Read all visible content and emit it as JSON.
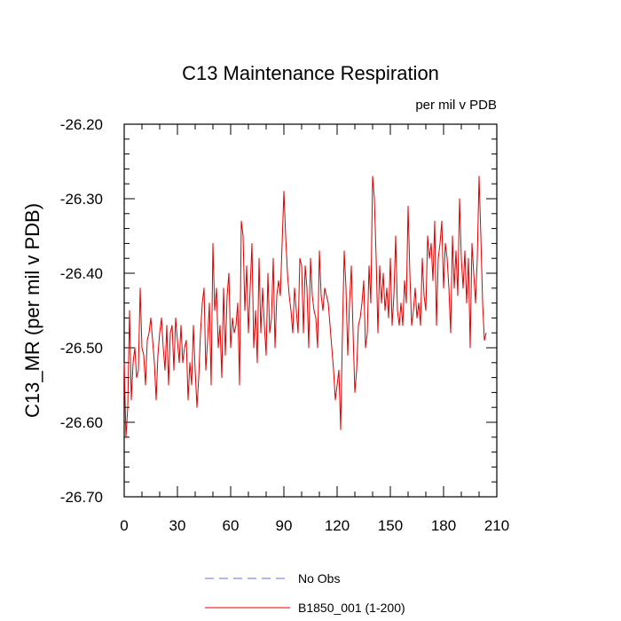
{
  "chart_data": {
    "type": "line",
    "title": "C13 Maintenance Respiration",
    "units_label": "per mil v PDB",
    "xlabel": "",
    "ylabel": "C13_MR  (per mil v PDB)",
    "xlim": [
      0,
      210
    ],
    "ylim": [
      -26.7,
      -26.2
    ],
    "xticks": [
      0,
      30,
      60,
      90,
      120,
      150,
      180,
      210
    ],
    "yticks": [
      -26.7,
      -26.6,
      -26.5,
      -26.4,
      -26.3,
      -26.2
    ],
    "x_minor_step": 10,
    "y_minor_step": 0.02,
    "legend": [
      {
        "label": "No Obs",
        "color": "#6b6bff",
        "dashed": true
      },
      {
        "label": "B1850_001 (1-200)",
        "color": "#dd0000",
        "dashed": false
      }
    ],
    "series": [
      {
        "name": "B1850_001 (1-200)",
        "color": "#dd0000",
        "x_start": 0,
        "x_step": 1,
        "values": [
          -26.52,
          -26.62,
          -26.58,
          -26.45,
          -26.57,
          -26.52,
          -26.5,
          -26.54,
          -26.53,
          -26.42,
          -26.5,
          -26.51,
          -26.55,
          -26.49,
          -26.48,
          -26.46,
          -26.49,
          -26.52,
          -26.57,
          -26.51,
          -26.48,
          -26.46,
          -26.5,
          -26.53,
          -26.47,
          -26.55,
          -26.48,
          -26.47,
          -26.53,
          -26.46,
          -26.49,
          -26.52,
          -26.47,
          -26.52,
          -26.5,
          -26.49,
          -26.57,
          -26.52,
          -26.55,
          -26.47,
          -26.53,
          -26.58,
          -26.54,
          -26.48,
          -26.44,
          -26.42,
          -26.53,
          -26.49,
          -26.44,
          -26.55,
          -26.36,
          -26.45,
          -26.42,
          -26.5,
          -26.47,
          -26.54,
          -26.42,
          -26.51,
          -26.43,
          -26.4,
          -26.5,
          -26.46,
          -26.48,
          -26.47,
          -26.44,
          -26.55,
          -26.33,
          -26.35,
          -26.45,
          -26.39,
          -26.48,
          -26.42,
          -26.36,
          -26.5,
          -26.45,
          -26.52,
          -26.38,
          -26.48,
          -26.42,
          -26.47,
          -26.51,
          -26.4,
          -26.48,
          -26.46,
          -26.38,
          -26.5,
          -26.43,
          -26.41,
          -26.43,
          -26.36,
          -26.29,
          -26.35,
          -26.4,
          -26.43,
          -26.45,
          -26.48,
          -26.42,
          -26.45,
          -26.48,
          -26.38,
          -26.39,
          -26.48,
          -26.39,
          -26.42,
          -26.5,
          -26.38,
          -26.43,
          -26.45,
          -26.46,
          -26.5,
          -26.37,
          -26.43,
          -26.45,
          -26.42,
          -26.43,
          -26.44,
          -26.47,
          -26.5,
          -26.53,
          -26.57,
          -26.55,
          -26.53,
          -26.61,
          -26.48,
          -26.37,
          -26.42,
          -26.51,
          -26.44,
          -26.39,
          -26.48,
          -26.56,
          -26.53,
          -26.47,
          -26.46,
          -26.44,
          -26.41,
          -26.5,
          -26.48,
          -26.39,
          -26.44,
          -26.27,
          -26.3,
          -26.38,
          -26.48,
          -26.39,
          -26.44,
          -26.4,
          -26.45,
          -26.42,
          -26.46,
          -26.38,
          -26.47,
          -26.43,
          -26.35,
          -26.45,
          -26.47,
          -26.44,
          -26.47,
          -26.41,
          -26.44,
          -26.31,
          -26.4,
          -26.47,
          -26.45,
          -26.42,
          -26.46,
          -26.44,
          -26.47,
          -26.38,
          -26.43,
          -26.45,
          -26.35,
          -26.38,
          -26.36,
          -26.41,
          -26.33,
          -26.47,
          -26.38,
          -26.36,
          -26.33,
          -26.42,
          -26.36,
          -26.38,
          -26.42,
          -26.48,
          -26.35,
          -26.42,
          -26.37,
          -26.43,
          -26.3,
          -26.38,
          -26.42,
          -26.37,
          -26.44,
          -26.38,
          -26.5,
          -26.36,
          -26.4,
          -26.44,
          -26.38,
          -26.27,
          -26.35,
          -26.44,
          -26.49,
          -26.48
        ]
      }
    ]
  }
}
